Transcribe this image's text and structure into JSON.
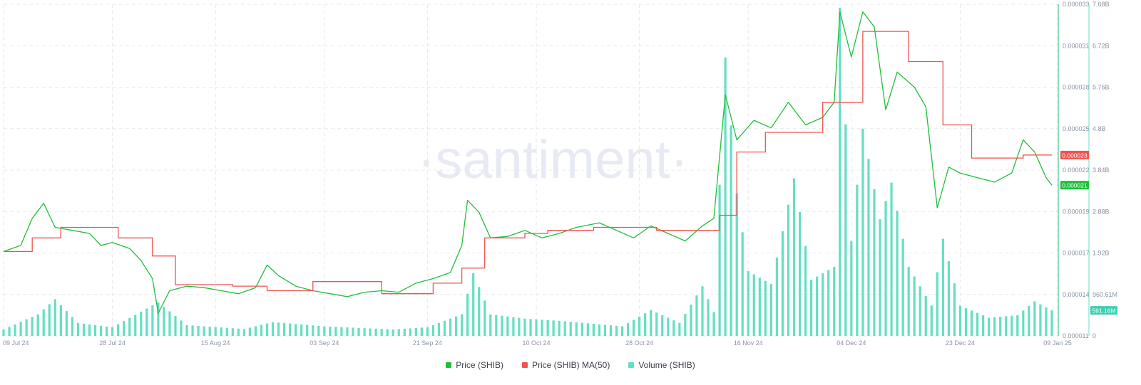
{
  "watermark": "·santiment·",
  "chart_data": {
    "type": "line",
    "x_ticks": [
      "09 Jul 24",
      "28 Jul 24",
      "15 Aug 24",
      "03 Sep 24",
      "21 Sep 24",
      "10 Oct 24",
      "28 Oct 24",
      "16 Nov 24",
      "04 Dec 24",
      "23 Dec 24",
      "09 Jan 25"
    ],
    "price_axis": {
      "ticks": [
        "0.000033",
        "0.000031",
        "0.000028",
        "0.000025",
        "0.000022",
        "0.000019",
        "0.000017",
        "0.000014",
        "0.000011"
      ],
      "ylim": [
        1.1e-05,
        3.3e-05
      ]
    },
    "volume_axis": {
      "ticks": [
        "7.68B",
        "6.72B",
        "5.76B",
        "4.8B",
        "3.84B",
        "2.88B",
        "1.92B",
        "960.61M",
        "0"
      ],
      "ylim": [
        0,
        7680000000
      ]
    },
    "last_labels": {
      "ma50": "0.000023",
      "price": "0.000021",
      "volume": "591.16M"
    },
    "series": [
      {
        "name": "Price (SHIB)",
        "color": "#26c281",
        "axis": "price",
        "points": [
          [
            "09 Jul 24",
            1.66e-05
          ],
          [
            "12 Jul 24",
            1.7e-05
          ],
          [
            "14 Jul 24",
            1.88e-05
          ],
          [
            "16 Jul 24",
            1.98e-05
          ],
          [
            "18 Jul 24",
            1.82e-05
          ],
          [
            "21 Jul 24",
            1.8e-05
          ],
          [
            "24 Jul 24",
            1.78e-05
          ],
          [
            "26 Jul 24",
            1.7e-05
          ],
          [
            "28 Jul 24",
            1.72e-05
          ],
          [
            "31 Jul 24",
            1.68e-05
          ],
          [
            "02 Aug 24",
            1.6e-05
          ],
          [
            "04 Aug 24",
            1.48e-05
          ],
          [
            "05 Aug 24",
            1.25e-05
          ],
          [
            "07 Aug 24",
            1.4e-05
          ],
          [
            "10 Aug 24",
            1.43e-05
          ],
          [
            "13 Aug 24",
            1.42e-05
          ],
          [
            "16 Aug 24",
            1.4e-05
          ],
          [
            "19 Aug 24",
            1.38e-05
          ],
          [
            "22 Aug 24",
            1.42e-05
          ],
          [
            "24 Aug 24",
            1.57e-05
          ],
          [
            "26 Aug 24",
            1.5e-05
          ],
          [
            "29 Aug 24",
            1.43e-05
          ],
          [
            "01 Sep 24",
            1.4e-05
          ],
          [
            "04 Sep 24",
            1.38e-05
          ],
          [
            "07 Sep 24",
            1.36e-05
          ],
          [
            "10 Sep 24",
            1.39e-05
          ],
          [
            "13 Sep 24",
            1.4e-05
          ],
          [
            "16 Sep 24",
            1.39e-05
          ],
          [
            "19 Sep 24",
            1.45e-05
          ],
          [
            "22 Sep 24",
            1.48e-05
          ],
          [
            "25 Sep 24",
            1.52e-05
          ],
          [
            "27 Sep 24",
            1.7e-05
          ],
          [
            "28 Sep 24",
            2e-05
          ],
          [
            "30 Sep 24",
            1.92e-05
          ],
          [
            "02 Oct 24",
            1.75e-05
          ],
          [
            "05 Oct 24",
            1.76e-05
          ],
          [
            "08 Oct 24",
            1.8e-05
          ],
          [
            "11 Oct 24",
            1.75e-05
          ],
          [
            "14 Oct 24",
            1.78e-05
          ],
          [
            "17 Oct 24",
            1.82e-05
          ],
          [
            "21 Oct 24",
            1.85e-05
          ],
          [
            "24 Oct 24",
            1.8e-05
          ],
          [
            "27 Oct 24",
            1.75e-05
          ],
          [
            "30 Oct 24",
            1.83e-05
          ],
          [
            "02 Nov 24",
            1.78e-05
          ],
          [
            "05 Nov 24",
            1.73e-05
          ],
          [
            "08 Nov 24",
            1.83e-05
          ],
          [
            "10 Nov 24",
            1.88e-05
          ],
          [
            "12 Nov 24",
            2.7e-05
          ],
          [
            "14 Nov 24",
            2.4e-05
          ],
          [
            "17 Nov 24",
            2.53e-05
          ],
          [
            "20 Nov 24",
            2.48e-05
          ],
          [
            "23 Nov 24",
            2.65e-05
          ],
          [
            "26 Nov 24",
            2.5e-05
          ],
          [
            "29 Nov 24",
            2.55e-05
          ],
          [
            "01 Dec 24",
            2.65e-05
          ],
          [
            "02 Dec 24",
            3.25e-05
          ],
          [
            "04 Dec 24",
            2.95e-05
          ],
          [
            "06 Dec 24",
            3.25e-05
          ],
          [
            "08 Dec 24",
            3.15e-05
          ],
          [
            "10 Dec 24",
            2.6e-05
          ],
          [
            "12 Dec 24",
            2.85e-05
          ],
          [
            "15 Dec 24",
            2.75e-05
          ],
          [
            "17 Dec 24",
            2.62e-05
          ],
          [
            "19 Dec 24",
            1.95e-05
          ],
          [
            "21 Dec 24",
            2.22e-05
          ],
          [
            "23 Dec 24",
            2.18e-05
          ],
          [
            "26 Dec 24",
            2.15e-05
          ],
          [
            "29 Dec 24",
            2.12e-05
          ],
          [
            "01 Jan 25",
            2.18e-05
          ],
          [
            "03 Jan 25",
            2.4e-05
          ],
          [
            "05 Jan 25",
            2.32e-05
          ],
          [
            "07 Jan 25",
            2.15e-05
          ],
          [
            "08 Jan 25",
            2.1e-05
          ]
        ]
      },
      {
        "name": "Price (SHIB) MA(50)",
        "color": "#ef5350",
        "axis": "price",
        "points": [
          [
            "09 Jul 24",
            1.66e-05
          ],
          [
            "14 Jul 24",
            1.75e-05
          ],
          [
            "19 Jul 24",
            1.82e-05
          ],
          [
            "29 Jul 24",
            1.75e-05
          ],
          [
            "04 Aug 24",
            1.63e-05
          ],
          [
            "08 Aug 24",
            1.44e-05
          ],
          [
            "18 Aug 24",
            1.43e-05
          ],
          [
            "24 Aug 24",
            1.4e-05
          ],
          [
            "01 Sep 24",
            1.46e-05
          ],
          [
            "13 Sep 24",
            1.38e-05
          ],
          [
            "22 Sep 24",
            1.45e-05
          ],
          [
            "27 Sep 24",
            1.55e-05
          ],
          [
            "01 Oct 24",
            1.75e-05
          ],
          [
            "08 Oct 24",
            1.78e-05
          ],
          [
            "12 Oct 24",
            1.8e-05
          ],
          [
            "20 Oct 24",
            1.82e-05
          ],
          [
            "31 Oct 24",
            1.8e-05
          ],
          [
            "11 Nov 24",
            1.9e-05
          ],
          [
            "14 Nov 24",
            2.32e-05
          ],
          [
            "19 Nov 24",
            2.45e-05
          ],
          [
            "29 Nov 24",
            2.65e-05
          ],
          [
            "06 Dec 24",
            3.12e-05
          ],
          [
            "14 Dec 24",
            2.92e-05
          ],
          [
            "20 Dec 24",
            2.5e-05
          ],
          [
            "25 Dec 24",
            2.28e-05
          ],
          [
            "03 Jan 25",
            2.3e-05
          ],
          [
            "08 Jan 25",
            2.3e-05
          ]
        ]
      },
      {
        "name": "Volume (SHIB)",
        "color": "#64dfc4",
        "axis": "volume",
        "points": [
          [
            "09 Jul 24",
            150000000
          ],
          [
            "15 Jul 24",
            500000000
          ],
          [
            "18 Jul 24",
            850000000
          ],
          [
            "22 Jul 24",
            300000000
          ],
          [
            "28 Jul 24",
            200000000
          ],
          [
            "05 Aug 24",
            780000000
          ],
          [
            "10 Aug 24",
            250000000
          ],
          [
            "20 Aug 24",
            160000000
          ],
          [
            "25 Aug 24",
            320000000
          ],
          [
            "03 Sep 24",
            220000000
          ],
          [
            "15 Sep 24",
            150000000
          ],
          [
            "21 Sep 24",
            200000000
          ],
          [
            "27 Sep 24",
            500000000
          ],
          [
            "29 Sep 24",
            1450000000
          ],
          [
            "02 Oct 24",
            500000000
          ],
          [
            "08 Oct 24",
            400000000
          ],
          [
            "14 Oct 24",
            350000000
          ],
          [
            "20 Oct 24",
            280000000
          ],
          [
            "25 Oct 24",
            220000000
          ],
          [
            "30 Oct 24",
            600000000
          ],
          [
            "04 Nov 24",
            300000000
          ],
          [
            "08 Nov 24",
            1150000000
          ],
          [
            "10 Nov 24",
            550000000
          ],
          [
            "12 Nov 24",
            6450000000
          ],
          [
            "14 Nov 24",
            3300000000
          ],
          [
            "16 Nov 24",
            1500000000
          ],
          [
            "20 Nov 24",
            1200000000
          ],
          [
            "24 Nov 24",
            3650000000
          ],
          [
            "27 Nov 24",
            1300000000
          ],
          [
            "01 Dec 24",
            1600000000
          ],
          [
            "02 Dec 24",
            7600000000
          ],
          [
            "04 Dec 24",
            2200000000
          ],
          [
            "06 Dec 24",
            4800000000
          ],
          [
            "09 Dec 24",
            2700000000
          ],
          [
            "11 Dec 24",
            3550000000
          ],
          [
            "14 Dec 24",
            1600000000
          ],
          [
            "18 Dec 24",
            700000000
          ],
          [
            "20 Dec 24",
            2250000000
          ],
          [
            "23 Dec 24",
            700000000
          ],
          [
            "28 Dec 24",
            420000000
          ],
          [
            "02 Jan 25",
            480000000
          ],
          [
            "05 Jan 25",
            800000000
          ],
          [
            "08 Jan 25",
            591160000
          ]
        ]
      }
    ],
    "legend": [
      "Price (SHIB)",
      "Price (SHIB) MA(50)",
      "Volume (SHIB)"
    ],
    "legend_position": "bottom-center",
    "grid": true
  }
}
